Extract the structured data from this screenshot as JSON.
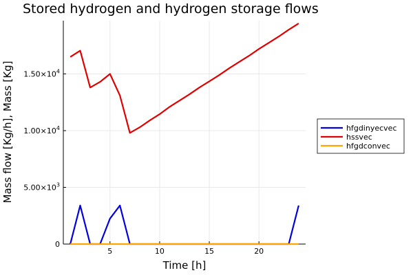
{
  "chart_data": {
    "type": "line",
    "title": "Stored hydrogen and hydrogen storage flows",
    "xlabel": "Time [h]",
    "ylabel": "Mass flow [Kg/h], Mass [Kg]",
    "xlim": [
      0.3,
      24.7
    ],
    "ylim": [
      0,
      19700
    ],
    "x_ticks": [
      5,
      10,
      15,
      20
    ],
    "y_ticks": [
      {
        "value": 0,
        "mantissa": "0",
        "exp": ""
      },
      {
        "value": 5000,
        "mantissa": "5.00×10",
        "exp": "3"
      },
      {
        "value": 10000,
        "mantissa": "1.00×10",
        "exp": "4"
      },
      {
        "value": 15000,
        "mantissa": "1.50×10",
        "exp": "4"
      }
    ],
    "grid": true,
    "legend_position": "right",
    "x": [
      1,
      2,
      3,
      4,
      5,
      6,
      7,
      8,
      9,
      10,
      11,
      12,
      13,
      14,
      15,
      16,
      17,
      18,
      19,
      20,
      21,
      22,
      23,
      24
    ],
    "series": [
      {
        "name": "hfgdinyecvec",
        "color": "#0000e0",
        "values": [
          0,
          3400,
          0,
          0,
          2250,
          3400,
          0,
          0,
          0,
          0,
          0,
          0,
          0,
          0,
          0,
          0,
          0,
          0,
          0,
          0,
          0,
          0,
          0,
          3400
        ]
      },
      {
        "name": "hssvec",
        "color": "#e00000",
        "values": [
          16500,
          17050,
          13800,
          14300,
          15000,
          13100,
          9800,
          10300,
          10900,
          11450,
          12100,
          12650,
          13200,
          13800,
          14350,
          14900,
          15500,
          16050,
          16600,
          17200,
          17750,
          18300,
          18900,
          19450
        ]
      },
      {
        "name": "hfgdconvec",
        "color": "#ffa500",
        "values": [
          0,
          0,
          0,
          0,
          0,
          0,
          0,
          0,
          0,
          0,
          0,
          0,
          0,
          0,
          0,
          0,
          0,
          0,
          0,
          0,
          0,
          0,
          0,
          0
        ]
      }
    ]
  }
}
